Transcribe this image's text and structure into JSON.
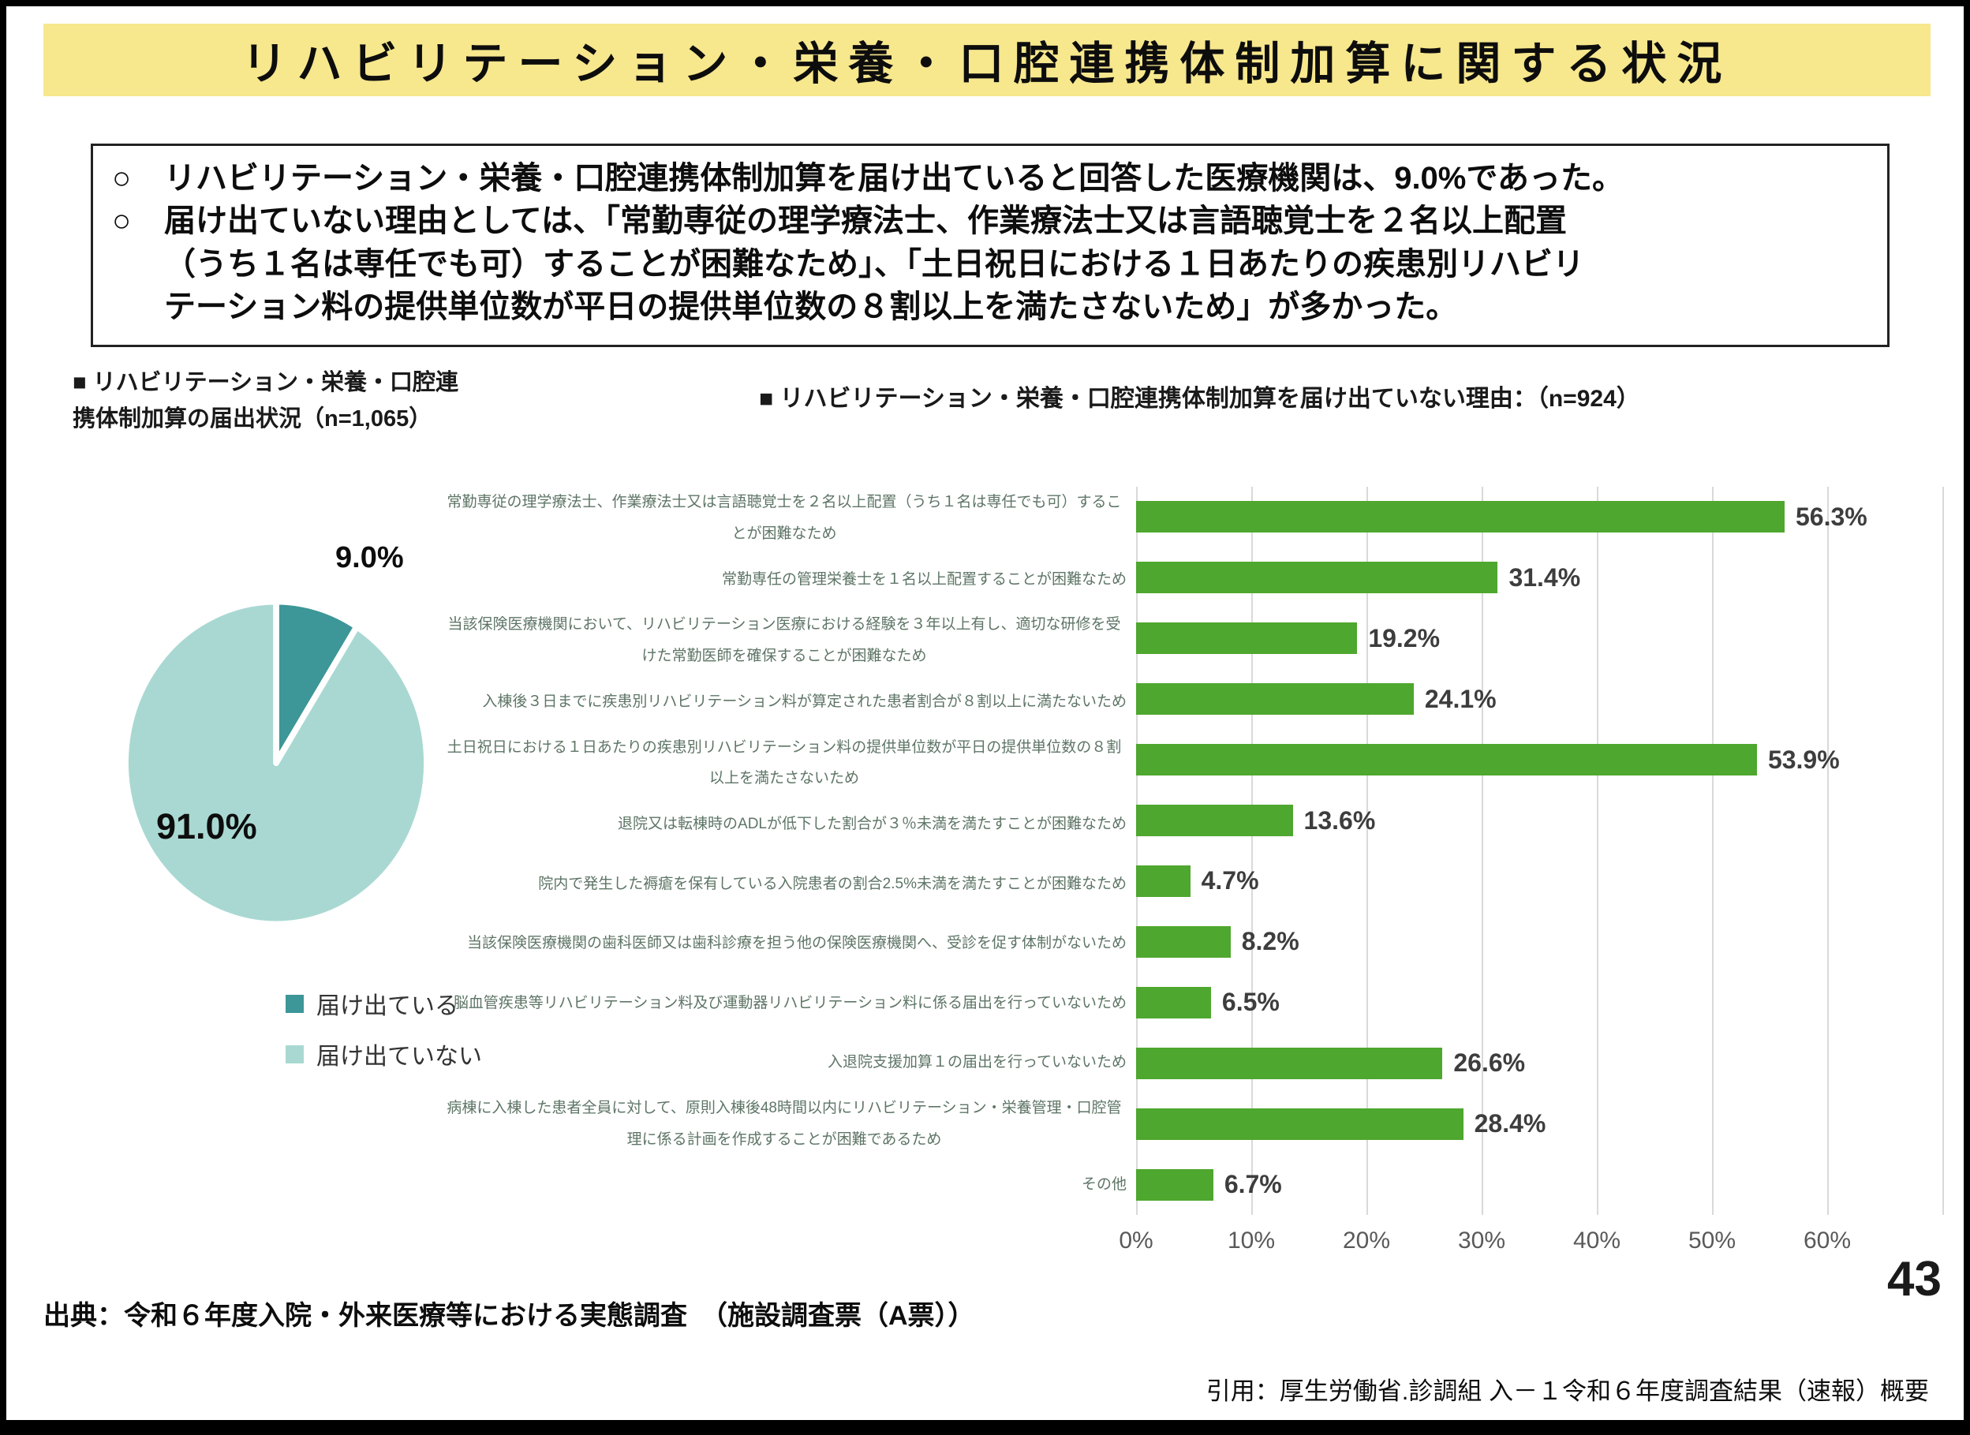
{
  "header": {
    "title": "リハビリテーション・栄養・口腔連携体制加算に関する状況",
    "banner_color": "#f7e78d"
  },
  "summary": {
    "marker": "○",
    "bullet1_line1": "リハビリテーション・栄養・口腔連携体制加算を届け出ていると回答した医療機関は、9.0%であった。",
    "bullet2_line1": "届け出ていない理由としては、「常勤専従の理学療法士、作業療法士又は言語聴覚士を２名以上配置",
    "bullet2_line2": "（うち１名は専任でも可）することが困難なため」、「土日祝日における１日あたりの疾患別リハビリ",
    "bullet2_line3": "テーション料の提供単位数が平日の提供単位数の８割以上を満たさないため」が多かった。"
  },
  "pie_section": {
    "title": "■ リハビリテーション・栄養・口腔連携体制加算の届出状況（n=1,065）",
    "small_label": "9.0%",
    "big_label": "91.0%",
    "legend": [
      {
        "label": "届け出ている",
        "color": "#3d9697"
      },
      {
        "label": "届け出ていない",
        "color": "#a9d8d2"
      }
    ]
  },
  "bar_section": {
    "title": "■ リハビリテーション・栄養・口腔連携体制加算を届け出ていない理由：（n=924）"
  },
  "footer": {
    "source": "出典：令和６年度入院・外来医療等における実態調査　（施設調査票（A票））",
    "page_number": "43",
    "citation": "引用：厚生労働省.診調組 入－１令和６年度調査結果（速報）概要"
  },
  "chart_data": [
    {
      "type": "pie",
      "title": "リハビリテーション・栄養・口腔連携体制加算の届出状況",
      "n": "n=1,065",
      "labels": [
        "届け出ている",
        "届け出ていない"
      ],
      "values": [
        9.0,
        91.0
      ],
      "data_labels": [
        "9.0%",
        "91.0%"
      ],
      "colors": [
        "#3d9697",
        "#a9d8d2"
      ],
      "start_angle_deg": -90,
      "direction": "clockwise",
      "legend_position": "bottom-left"
    },
    {
      "type": "bar",
      "orientation": "horizontal",
      "title": "リハビリテーション・栄養・口腔連携体制加算を届け出ていない理由",
      "n": "n=924",
      "categories": [
        "常勤専従の理学療法士、作業療法士又は言語聴覚士を２名以上配置（うち１名は専任でも可）することが困難なため",
        "常勤専任の管理栄養士を１名以上配置することが困難なため",
        "当該保険医療機関において、リハビリテーション医療における経験を３年以上有し、適切な研修を受けた常勤医師を確保することが困難なため",
        "入棟後３日までに疾患別リハビリテーション料が算定された患者割合が８割以上に満たないため",
        "土日祝日における１日あたりの疾患別リハビリテーション料の提供単位数が平日の提供単位数の８割以上を満たさないため",
        "退院又は転棟時のADLが低下した割合が３％未満を満たすことが困難なため",
        "院内で発生した褥瘡を保有している入院患者の割合2.5%未満を満たすことが困難なため",
        "当該保険医療機関の歯科医師又は歯科診療を担う他の保険医療機関へ、受診を促す体制がないため",
        "脳血管疾患等リハビリテーション料及び運動器リハビリテーション料に係る届出を行っていないため",
        "入退院支援加算１の届出を行っていないため",
        "病棟に入棟した患者全員に対して、原則入棟後48時間以内にリハビリテーション・栄養管理・口腔管理に係る計画を作成することが困難であるため",
        "その他"
      ],
      "values": [
        56.3,
        31.4,
        19.2,
        24.1,
        53.9,
        13.6,
        4.7,
        8.2,
        6.5,
        26.6,
        28.4,
        6.7
      ],
      "value_labels": [
        "56.3%",
        "31.4%",
        "19.2%",
        "24.1%",
        "53.9%",
        "13.6%",
        "4.7%",
        "8.2%",
        "6.5%",
        "26.6%",
        "28.4%",
        "6.7%"
      ],
      "xlim": [
        0,
        70
      ],
      "x_ticks": [
        "0%",
        "10%",
        "20%",
        "30%",
        "40%",
        "50%",
        "60%"
      ],
      "bar_color": "#4ea72e",
      "grid": true,
      "gridline_color": "#d9d9d9"
    }
  ]
}
